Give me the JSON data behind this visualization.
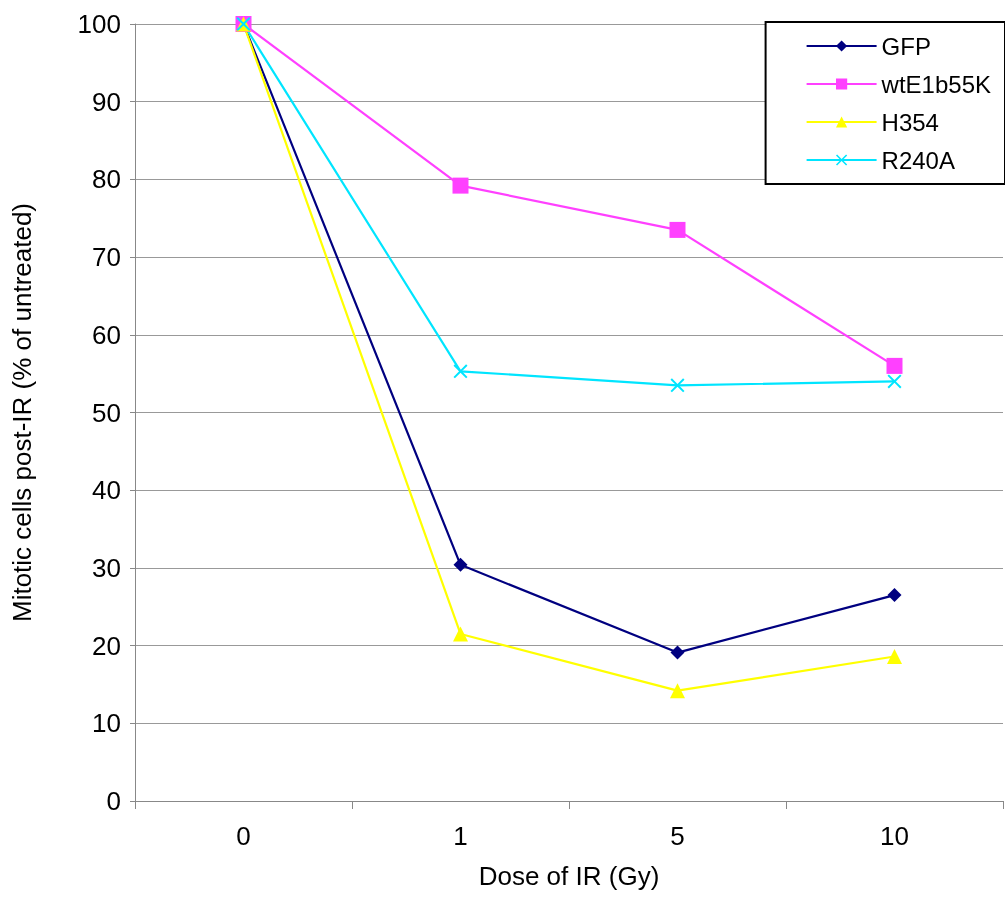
{
  "chart_data": {
    "type": "line",
    "xlabel": "Dose of IR (Gy)",
    "ylabel": "Mitotic cells post-IR (% of untreated)",
    "categories": [
      "0",
      "1",
      "5",
      "10"
    ],
    "ylim": [
      0,
      100
    ],
    "yticks": [
      0,
      10,
      20,
      30,
      40,
      50,
      60,
      70,
      80,
      90,
      100
    ],
    "grid": "y",
    "legend": "top right",
    "line_style": "solid",
    "series": [
      {
        "name": "GFP",
        "color": "#000080",
        "marker": "diamond",
        "values": [
          100,
          30.4,
          19.1,
          26.5
        ]
      },
      {
        "name": "wtE1b55K",
        "color": "#ff40ff",
        "marker": "square",
        "values": [
          100,
          79.2,
          73.5,
          56
        ]
      },
      {
        "name": "H354",
        "color": "#ffff00",
        "marker": "triangle",
        "values": [
          100,
          21.5,
          14.2,
          18.6
        ]
      },
      {
        "name": "R240A",
        "color": "#00e5ff",
        "marker": "cross",
        "values": [
          100,
          55.3,
          53.5,
          54
        ]
      }
    ]
  }
}
